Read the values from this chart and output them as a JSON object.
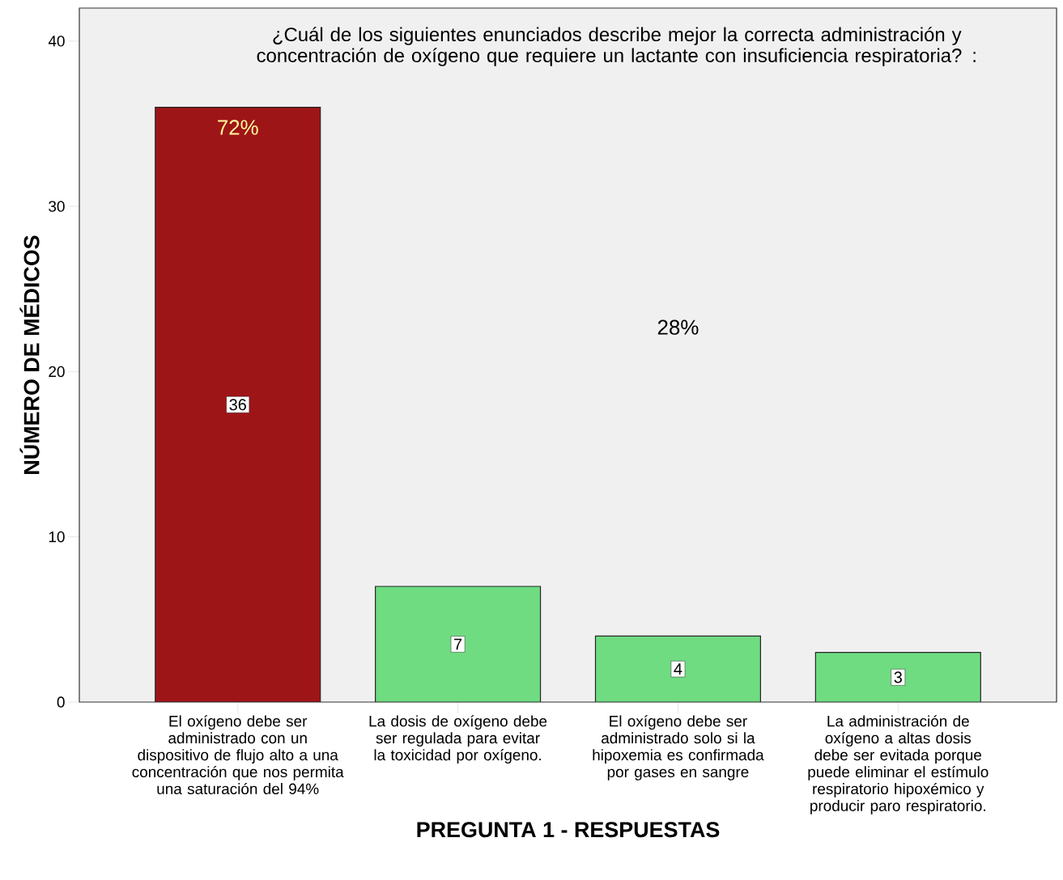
{
  "chart_data": {
    "type": "bar",
    "title": "¿Cuál de los siguientes enunciados describe mejor la correcta administración y concentración  de oxígeno que requiere un lactante con insuficiencia respiratoria? :",
    "xlabel": "PREGUNTA 1  -  RESPUESTAS",
    "ylabel": "NÚMERO DE MÉDICOS",
    "categories": [
      "El oxígeno debe ser administrado con un dispositivo de  flujo alto a una concentración que nos permita una saturación del 94%",
      "La dosis de oxígeno debe ser regulada para evitar la toxicidad por oxígeno.",
      "El oxígeno debe ser administrado solo si la hipoxemia es confirmada por gases en sangre",
      "La administración de oxígeno a altas dosis debe ser evitada porque puede eliminar el estímulo respiratorio hipoxémico y producir paro respiratorio."
    ],
    "values": [
      36,
      7,
      4,
      3
    ],
    "colors": [
      "#9e1518",
      "#6fdc82",
      "#6fdc82",
      "#6fdc82"
    ],
    "data_labels": true,
    "annotations": [
      "72%",
      "28%"
    ],
    "ylim": [
      0,
      42
    ],
    "yticks": [
      0,
      10,
      20,
      30,
      40
    ],
    "grid": false
  }
}
